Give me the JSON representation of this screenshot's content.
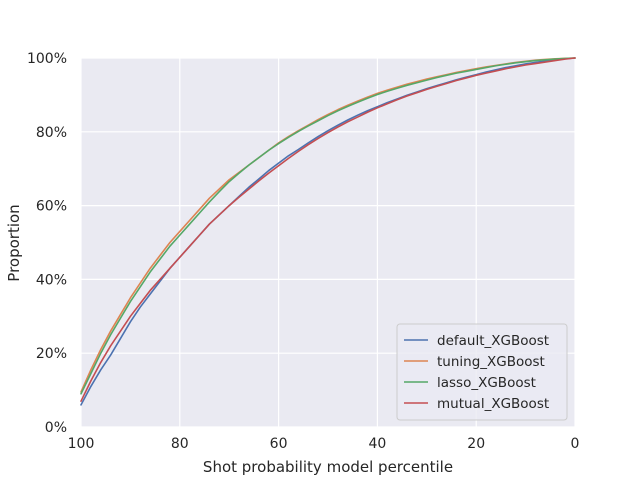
{
  "chart_data": {
    "type": "line",
    "title": "",
    "xlabel": "Shot probability model percentile",
    "ylabel": "Proportion",
    "xlim": [
      100,
      0
    ],
    "ylim": [
      0,
      1
    ],
    "x_reversed": true,
    "grid": true,
    "legend_position": "lower-right",
    "x_ticks": [
      100,
      80,
      60,
      40,
      20,
      0
    ],
    "x_tick_labels": [
      "100",
      "80",
      "60",
      "40",
      "20",
      "0"
    ],
    "y_ticks": [
      0,
      0.2,
      0.4,
      0.6,
      0.8,
      1.0
    ],
    "y_tick_labels": [
      "0%",
      "20%",
      "40%",
      "60%",
      "80%",
      "100%"
    ],
    "x": [
      100,
      98,
      96,
      94,
      92,
      90,
      88,
      86,
      84,
      82,
      80,
      78,
      76,
      74,
      72,
      70,
      68,
      66,
      64,
      62,
      60,
      58,
      56,
      54,
      52,
      50,
      48,
      46,
      44,
      42,
      40,
      38,
      36,
      34,
      32,
      30,
      28,
      26,
      24,
      22,
      20,
      18,
      16,
      14,
      12,
      10,
      8,
      6,
      4,
      2,
      0
    ],
    "series": [
      {
        "name": "default_XGBoost",
        "color": "#4c72b0",
        "values": [
          0.06,
          0.11,
          0.155,
          0.195,
          0.24,
          0.285,
          0.325,
          0.36,
          0.395,
          0.43,
          0.46,
          0.49,
          0.52,
          0.55,
          0.575,
          0.6,
          0.625,
          0.65,
          0.672,
          0.695,
          0.715,
          0.735,
          0.752,
          0.77,
          0.787,
          0.803,
          0.818,
          0.832,
          0.845,
          0.857,
          0.868,
          0.879,
          0.889,
          0.899,
          0.908,
          0.917,
          0.925,
          0.933,
          0.941,
          0.948,
          0.955,
          0.962,
          0.968,
          0.974,
          0.979,
          0.984,
          0.988,
          0.992,
          0.995,
          0.998,
          1.0
        ]
      },
      {
        "name": "tuning_XGBoost",
        "color": "#dd8452",
        "values": [
          0.095,
          0.155,
          0.21,
          0.26,
          0.305,
          0.35,
          0.39,
          0.43,
          0.465,
          0.5,
          0.53,
          0.56,
          0.59,
          0.62,
          0.645,
          0.67,
          0.69,
          0.71,
          0.73,
          0.75,
          0.77,
          0.787,
          0.803,
          0.818,
          0.833,
          0.847,
          0.86,
          0.872,
          0.883,
          0.894,
          0.904,
          0.913,
          0.921,
          0.929,
          0.936,
          0.943,
          0.949,
          0.955,
          0.961,
          0.966,
          0.971,
          0.976,
          0.98,
          0.984,
          0.988,
          0.991,
          0.994,
          0.996,
          0.998,
          0.999,
          1.0
        ]
      },
      {
        "name": "lasso_XGBoost",
        "color": "#55a868",
        "values": [
          0.09,
          0.145,
          0.2,
          0.25,
          0.295,
          0.34,
          0.38,
          0.42,
          0.455,
          0.49,
          0.52,
          0.55,
          0.58,
          0.61,
          0.638,
          0.665,
          0.688,
          0.71,
          0.73,
          0.75,
          0.768,
          0.785,
          0.801,
          0.816,
          0.83,
          0.844,
          0.857,
          0.869,
          0.88,
          0.891,
          0.901,
          0.91,
          0.918,
          0.926,
          0.933,
          0.94,
          0.947,
          0.953,
          0.959,
          0.964,
          0.969,
          0.974,
          0.979,
          0.983,
          0.987,
          0.99,
          0.993,
          0.995,
          0.997,
          0.999,
          1.0
        ]
      },
      {
        "name": "mutual_XGBoost",
        "color": "#c44e52",
        "values": [
          0.07,
          0.125,
          0.175,
          0.22,
          0.26,
          0.3,
          0.335,
          0.37,
          0.4,
          0.43,
          0.46,
          0.49,
          0.52,
          0.55,
          0.575,
          0.6,
          0.623,
          0.645,
          0.667,
          0.688,
          0.708,
          0.728,
          0.747,
          0.765,
          0.782,
          0.798,
          0.813,
          0.827,
          0.84,
          0.853,
          0.865,
          0.876,
          0.887,
          0.897,
          0.906,
          0.915,
          0.923,
          0.931,
          0.939,
          0.946,
          0.953,
          0.959,
          0.965,
          0.971,
          0.976,
          0.981,
          0.985,
          0.989,
          0.993,
          0.997,
          1.0
        ]
      }
    ]
  }
}
